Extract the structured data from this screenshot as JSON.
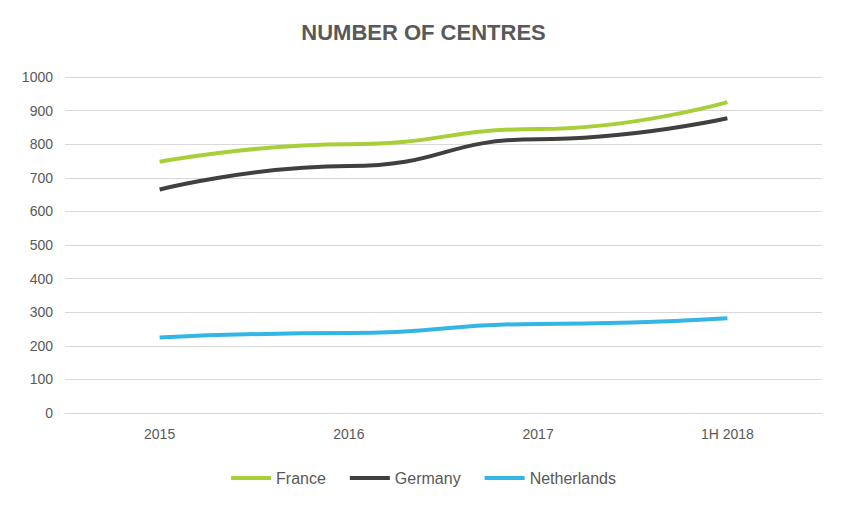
{
  "chart_data": {
    "type": "line",
    "title": "NUMBER OF CENTRES",
    "categories": [
      "2015",
      "2016",
      "2017",
      "1H 2018"
    ],
    "series": [
      {
        "name": "France",
        "color": "#a8cf38",
        "values": [
          748,
          800,
          845,
          925
        ]
      },
      {
        "name": "Germany",
        "color": "#404040",
        "values": [
          665,
          735,
          815,
          877
        ]
      },
      {
        "name": "Netherlands",
        "color": "#33b5e5",
        "values": [
          225,
          238,
          265,
          282
        ]
      }
    ],
    "ylim": [
      0,
      1000
    ],
    "yticks": [
      0,
      100,
      200,
      300,
      400,
      500,
      600,
      700,
      800,
      900,
      1000
    ],
    "grid": true,
    "legend": "bottom"
  }
}
